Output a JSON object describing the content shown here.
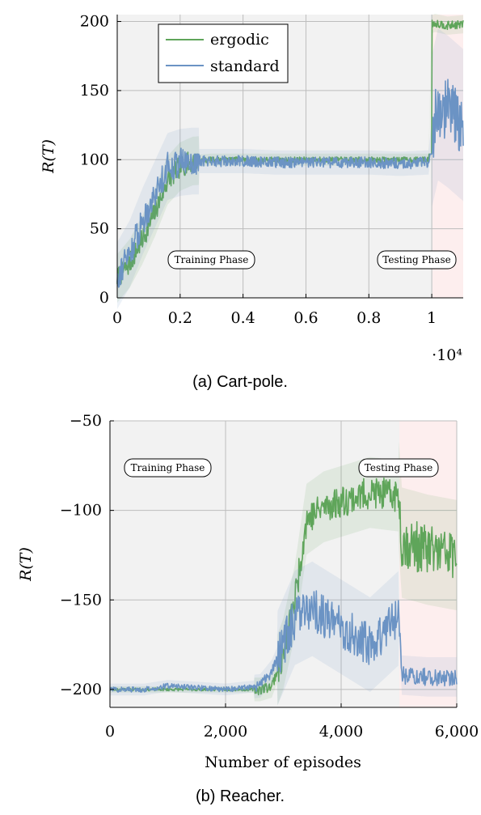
{
  "colors": {
    "ergodic": "#5fa55a",
    "standard": "#6b93c4",
    "plot_bg": "#f2f2f2",
    "test_bg": "#fdeeee",
    "grid": "#bdbdbd"
  },
  "chart_data": [
    {
      "type": "line",
      "caption": "(a) Cart-pole.",
      "ylabel": "R(T)",
      "xlabel": "",
      "xlim": [
        0,
        11000
      ],
      "ylim": [
        0,
        205
      ],
      "x_ticks": [
        0,
        2000,
        4000,
        6000,
        8000,
        10000
      ],
      "x_tick_labels": [
        "0",
        "0.2",
        "0.4",
        "0.6",
        "0.8",
        "1"
      ],
      "x_multiplier": "·10⁴",
      "y_ticks": [
        0,
        50,
        100,
        150,
        200
      ],
      "y_tick_labels": [
        "0",
        "50",
        "100",
        "150",
        "200"
      ],
      "grid": true,
      "legend": {
        "position": "top-left",
        "entries": [
          "ergodic",
          "standard"
        ]
      },
      "phase_labels": {
        "training": "Training Phase",
        "testing": "Testing Phase"
      },
      "testing_start": 10000,
      "series": [
        {
          "name": "ergodic",
          "x": [
            0,
            400,
            800,
            1200,
            1600,
            2000,
            2400,
            3000,
            4000,
            5000,
            6000,
            7000,
            8000,
            9000,
            9900,
            10000,
            10100,
            10500,
            11000
          ],
          "values": [
            14,
            25,
            42,
            62,
            85,
            95,
            99,
            100,
            100,
            100,
            100,
            100,
            100,
            100,
            100,
            198,
            199,
            197,
            198
          ]
        },
        {
          "name": "standard",
          "x": [
            0,
            400,
            800,
            1200,
            1600,
            2000,
            2400,
            3000,
            4000,
            5000,
            6000,
            7000,
            8000,
            9000,
            9900,
            10000,
            10200,
            10500,
            11000
          ],
          "values": [
            16,
            32,
            55,
            75,
            95,
            98,
            99,
            99,
            99,
            98,
            98,
            98,
            98,
            97,
            98,
            120,
            140,
            135,
            125
          ]
        }
      ]
    },
    {
      "type": "line",
      "caption": "(b) Reacher.",
      "ylabel": "R(T)",
      "xlabel": "Number of episodes",
      "xlim": [
        0,
        6000
      ],
      "ylim": [
        -210,
        -50
      ],
      "x_ticks": [
        0,
        2000,
        4000,
        6000
      ],
      "x_tick_labels": [
        "0",
        "2,000",
        "4,000",
        "6,000"
      ],
      "y_ticks": [
        -200,
        -150,
        -100,
        -50
      ],
      "y_tick_labels": [
        "−200",
        "−150",
        "−100",
        "−50"
      ],
      "grid": true,
      "legend": null,
      "phase_labels": {
        "training": "Training Phase",
        "testing": "Testing Phase"
      },
      "testing_start": 5000,
      "series": [
        {
          "name": "ergodic",
          "x": [
            0,
            2000,
            2600,
            2800,
            3000,
            3200,
            3400,
            3700,
            4000,
            4500,
            5000,
            5050,
            5500,
            6000
          ],
          "values": [
            -200,
            -200,
            -200,
            -198,
            -180,
            -150,
            -105,
            -98,
            -95,
            -90,
            -92,
            -118,
            -122,
            -125
          ]
        },
        {
          "name": "standard",
          "x": [
            0,
            600,
            1000,
            2000,
            2600,
            2800,
            3000,
            3200,
            3500,
            4000,
            4500,
            5000,
            5050,
            5500,
            6000
          ],
          "values": [
            -200,
            -200,
            -198,
            -200,
            -198,
            -190,
            -175,
            -160,
            -155,
            -165,
            -175,
            -160,
            -192,
            -193,
            -193
          ]
        }
      ]
    }
  ]
}
